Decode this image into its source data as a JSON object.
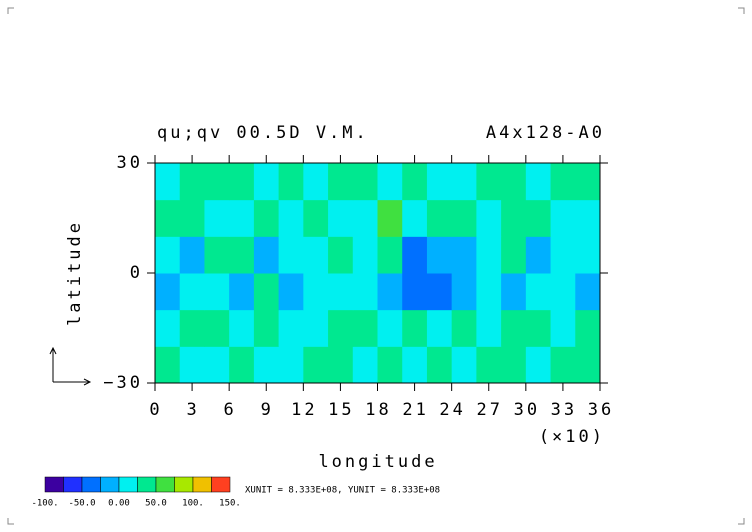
{
  "chart_data": {
    "type": "heatmap",
    "title": "qu;qv 00.5D V.M.",
    "subtitle": "A4x128-A0",
    "x_label": "longitude",
    "x_label_note": "(×10)",
    "y_label": "latitude",
    "x": [
      10,
      30,
      50,
      70,
      90,
      110,
      130,
      150,
      170,
      190,
      210,
      230,
      250,
      270,
      290,
      310,
      330,
      350
    ],
    "y": [
      -25,
      -15,
      -5,
      5,
      15,
      25
    ],
    "values": [
      [
        30,
        20,
        15,
        30,
        10,
        20,
        35,
        25,
        15,
        30,
        20,
        35,
        15,
        25,
        45,
        20,
        30,
        25
      ],
      [
        20,
        30,
        25,
        10,
        35,
        20,
        15,
        30,
        25,
        20,
        35,
        15,
        30,
        20,
        25,
        35,
        20,
        30
      ],
      [
        -20,
        10,
        5,
        -15,
        30,
        -10,
        20,
        5,
        15,
        -5,
        -40,
        -30,
        -20,
        10,
        -15,
        20,
        5,
        -10
      ],
      [
        10,
        -10,
        30,
        45,
        -5,
        20,
        10,
        35,
        15,
        30,
        -30,
        -20,
        -15,
        5,
        30,
        -10,
        20,
        10
      ],
      [
        25,
        35,
        20,
        15,
        30,
        10,
        25,
        20,
        15,
        60,
        20,
        25,
        30,
        20,
        35,
        40,
        15,
        20
      ],
      [
        20,
        30,
        35,
        25,
        15,
        30,
        20,
        35,
        25,
        20,
        30,
        15,
        20,
        35,
        25,
        20,
        30,
        25
      ]
    ],
    "xlim": [
      0,
      360
    ],
    "ylim": [
      -30,
      30
    ],
    "xticks": [
      {
        "value": 0,
        "label": "0"
      },
      {
        "value": 30,
        "label": "3"
      },
      {
        "value": 60,
        "label": "6"
      },
      {
        "value": 90,
        "label": "9"
      },
      {
        "value": 120,
        "label": "12"
      },
      {
        "value": 150,
        "label": "15"
      },
      {
        "value": 180,
        "label": "18"
      },
      {
        "value": 210,
        "label": "21"
      },
      {
        "value": 240,
        "label": "24"
      },
      {
        "value": 270,
        "label": "27"
      },
      {
        "value": 300,
        "label": "30"
      },
      {
        "value": 330,
        "label": "33"
      },
      {
        "value": 360,
        "label": "36"
      }
    ],
    "yticks": [
      {
        "value": -30,
        "label": "−30"
      },
      0,
      30
    ],
    "levels": [
      -100,
      -75,
      -50,
      -25,
      0,
      25,
      50,
      75,
      100,
      125,
      150
    ],
    "colors": [
      "#3c00a0",
      "#2030ff",
      "#0070ff",
      "#00b0ff",
      "#00f0f0",
      "#00e890",
      "#40e040",
      "#a8e800",
      "#f0c000",
      "#ff4020"
    ],
    "colorbar_ticks": [
      {
        "value": -100,
        "label": "-100."
      },
      {
        "value": -50,
        "label": "-50.0"
      },
      {
        "value": 0,
        "label": "0.00"
      },
      {
        "value": 50,
        "label": "50.0"
      },
      {
        "value": 100,
        "label": "100."
      },
      {
        "value": 150,
        "label": "150."
      }
    ],
    "unit_note": "XUNIT = 8.333E+08, YUNIT = 8.333E+08"
  }
}
